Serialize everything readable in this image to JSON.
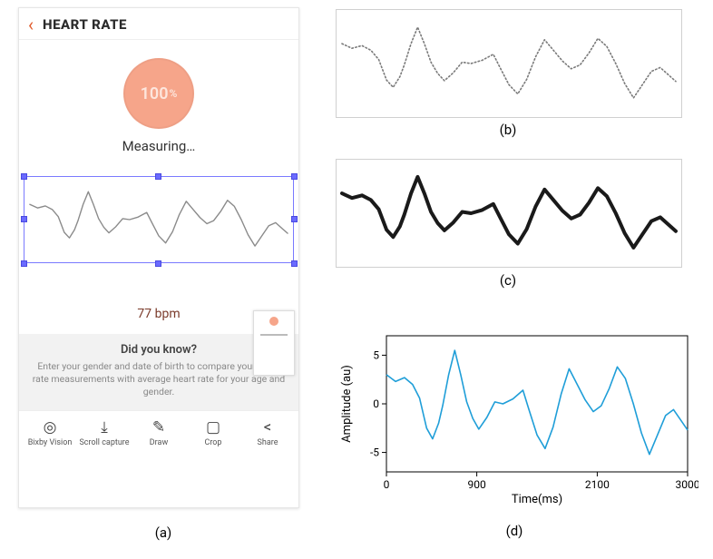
{
  "labels": {
    "a": "(a)",
    "b": "(b)",
    "c": "(c)",
    "d": "(d)"
  },
  "phone": {
    "header": {
      "back_glyph": "‹",
      "title": "HEART RATE",
      "back_color": "#e05a2b"
    },
    "progress": {
      "value_text": "100",
      "suffix": "%",
      "fill_color": "#f6a58a",
      "text_color": "#fde6dd"
    },
    "measuring_label": "Measuring…",
    "bpm": {
      "value": 77,
      "unit": "bpm",
      "text_color": "#7a3a2a"
    },
    "info": {
      "title": "Did you know?",
      "text": "Enter your gender and date of birth to compare your heart rate measurements with average heart rate for your age and gender."
    },
    "toolbar": [
      {
        "name": "bixby-vision",
        "label": "Bixby Vision",
        "glyph": "◎"
      },
      {
        "name": "scroll-capture",
        "label": "Scroll capture",
        "glyph": "⤓"
      },
      {
        "name": "draw",
        "label": "Draw",
        "glyph": "✎"
      },
      {
        "name": "crop",
        "label": "Crop",
        "glyph": "▢"
      },
      {
        "name": "share",
        "label": "Share",
        "glyph": "<"
      }
    ],
    "selection_handle_color": "#6a6aff",
    "selection_border_color": "#7a7aff"
  },
  "waveform": {
    "points_au": [
      [
        0,
        3.0
      ],
      [
        90,
        2.3
      ],
      [
        180,
        2.7
      ],
      [
        260,
        2.0
      ],
      [
        330,
        0.6
      ],
      [
        400,
        -2.5
      ],
      [
        460,
        -3.6
      ],
      [
        520,
        -2.0
      ],
      [
        560,
        -0.2
      ],
      [
        620,
        3.0
      ],
      [
        680,
        5.5
      ],
      [
        740,
        3.0
      ],
      [
        800,
        0.2
      ],
      [
        860,
        -1.5
      ],
      [
        920,
        -2.6
      ],
      [
        1000,
        -1.4
      ],
      [
        1080,
        0.2
      ],
      [
        1160,
        0.0
      ],
      [
        1260,
        0.5
      ],
      [
        1360,
        1.4
      ],
      [
        1420,
        -0.6
      ],
      [
        1500,
        -3.2
      ],
      [
        1580,
        -4.6
      ],
      [
        1660,
        -2.4
      ],
      [
        1740,
        1.0
      ],
      [
        1820,
        3.6
      ],
      [
        1900,
        2.0
      ],
      [
        1980,
        0.4
      ],
      [
        2060,
        -0.8
      ],
      [
        2140,
        -0.2
      ],
      [
        2220,
        1.6
      ],
      [
        2300,
        3.8
      ],
      [
        2380,
        2.6
      ],
      [
        2460,
        0.0
      ],
      [
        2540,
        -3.0
      ],
      [
        2620,
        -5.2
      ],
      [
        2700,
        -3.2
      ],
      [
        2780,
        -1.2
      ],
      [
        2860,
        -0.6
      ],
      [
        2940,
        -1.8
      ],
      [
        3000,
        -2.7
      ]
    ],
    "b_stroke": "#7a7a7a",
    "b_stroke_width": 1.6,
    "c_stroke": "#1a1a1a",
    "c_stroke_width": 4.0,
    "phone_stroke": "#8a8a8a",
    "phone_stroke_width": 1.4
  },
  "chart_d": {
    "line_color": "#1f9ed8",
    "line_width": 1.6,
    "background": "#ffffff",
    "axis_color": "#000000",
    "xlabel": "Time(ms)",
    "ylabel": "Amplitude (au)",
    "xlim": [
      0,
      3000
    ],
    "ylim": [
      -7,
      7
    ],
    "xticks": [
      0,
      900,
      2100,
      3000
    ],
    "yticks": [
      -5,
      0,
      5
    ],
    "label_fontsize": 13,
    "tick_fontsize": 12
  }
}
